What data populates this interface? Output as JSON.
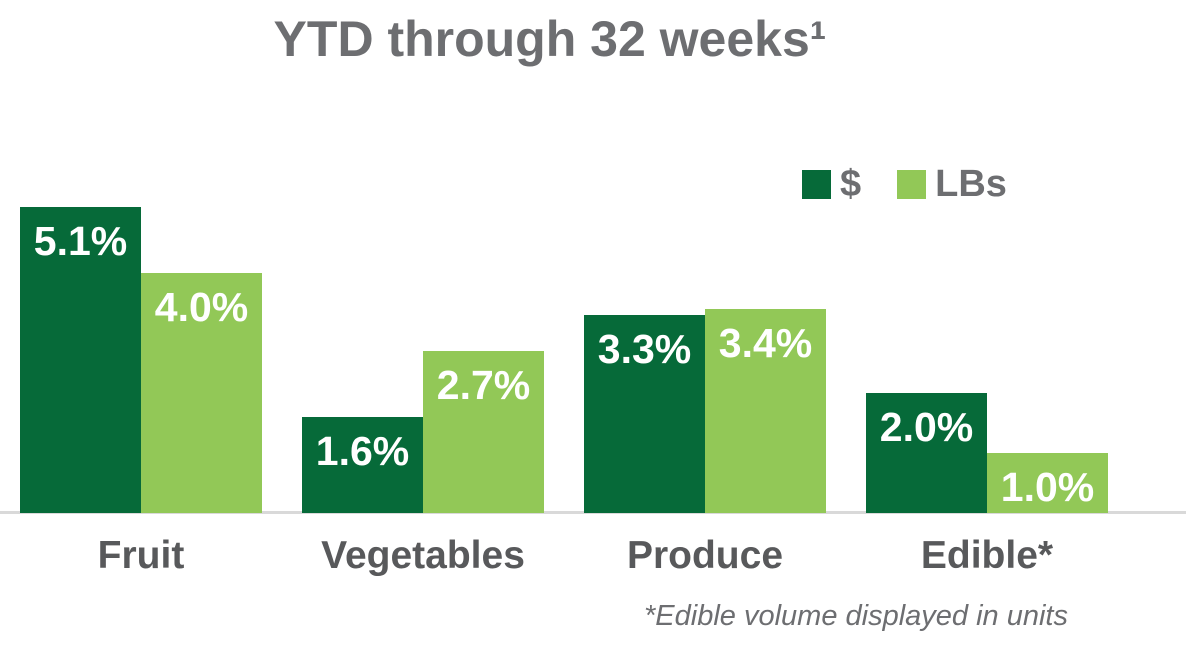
{
  "chart_data": {
    "type": "bar",
    "title": "YTD through 32 weeks¹",
    "categories": [
      "Fruit",
      "Vegetables",
      "Produce",
      "Edible*"
    ],
    "series": [
      {
        "name": "$",
        "color": "#066a39",
        "values": [
          5.1,
          1.6,
          3.3,
          2.0
        ],
        "labels": [
          "5.1%",
          "1.6%",
          "3.3%",
          "2.0%"
        ]
      },
      {
        "name": "LBs",
        "color": "#92c857",
        "values": [
          4.0,
          2.7,
          3.4,
          1.0
        ],
        "labels": [
          "4.0%",
          "2.7%",
          "3.4%",
          "1.0%"
        ]
      }
    ],
    "value_suffix": "%",
    "ylim": [
      0,
      5.5
    ],
    "grid": false,
    "legend_position": "top-right",
    "axis_line_color": "#d9d9d9",
    "footnote": "*Edible volume displayed in units"
  }
}
